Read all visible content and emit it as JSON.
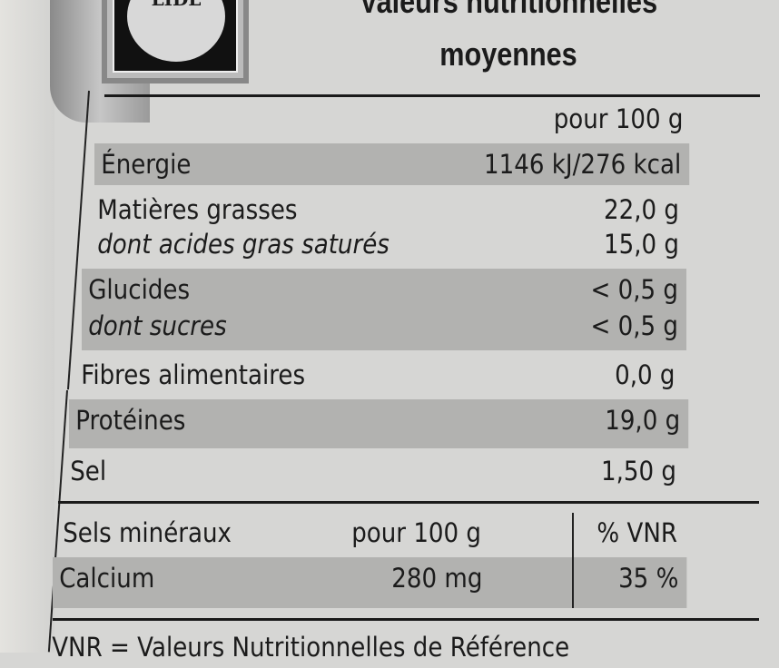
{
  "logo": {
    "text": "LIDL"
  },
  "title": {
    "line1": "Valeurs nutritionnelles",
    "line2": "moyennes"
  },
  "header": {
    "per": "pour 100 g"
  },
  "rows": [
    {
      "label": "Énergie",
      "value": "1146 kJ/276 kcal"
    },
    {
      "label": "Matières grasses",
      "value": "22,0 g"
    },
    {
      "label": "dont acides gras saturés",
      "value": "15,0 g"
    },
    {
      "label": "Glucides",
      "value": "< 0,5 g"
    },
    {
      "label": "dont sucres",
      "value": "< 0,5 g"
    },
    {
      "label": "Fibres alimentaires",
      "value": "0,0 g"
    },
    {
      "label": "Protéines",
      "value": "19,0 g"
    },
    {
      "label": "Sel",
      "value": "1,50 g"
    }
  ],
  "minerals": {
    "header": {
      "label": "Sels minéraux",
      "per": "pour 100 g",
      "vnr": "% VNR"
    },
    "rows": [
      {
        "label": "Calcium",
        "value": "280 mg",
        "vnr": "35 %"
      }
    ]
  },
  "footer": "VNR = Valeurs Nutritionnelles de Référence",
  "colors": {
    "background": "#d6d6d4",
    "shade": "#b2b2b0",
    "text": "#1b1b1b"
  }
}
